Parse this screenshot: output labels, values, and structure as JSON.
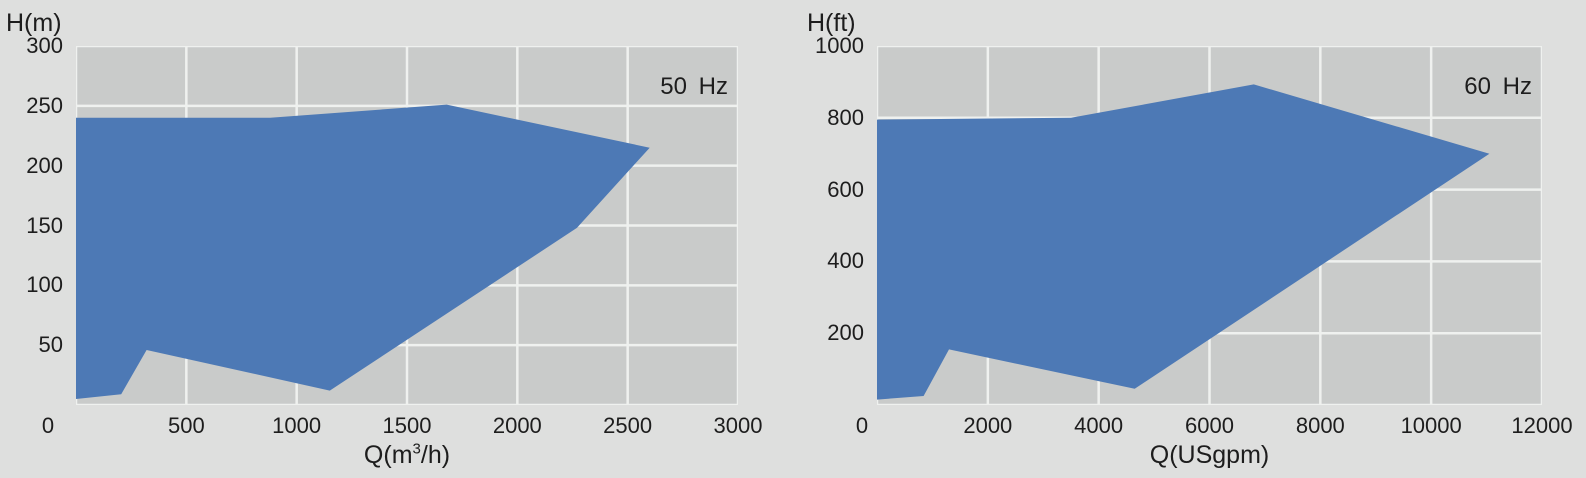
{
  "page": {
    "background": "#dedfde",
    "plot_background": "#c9cbca",
    "grid_color": "#eff1ef",
    "envelope_color": "#4d79b5",
    "text_color": "#1d1d1d"
  },
  "chart_data": [
    {
      "type": "area",
      "frequency_label": "50 Hz",
      "y_axis_title": "H(m)",
      "x_axis_title": {
        "pre": "Q(m",
        "sup": "3",
        "post": "/h)"
      },
      "x_range": [
        0,
        3000
      ],
      "y_range": [
        0,
        300
      ],
      "x_grid_step": 500,
      "y_grid_step": 50,
      "x_tick_labels": [
        500,
        1000,
        1500,
        2000,
        2500,
        3000
      ],
      "y_tick_labels": [
        300,
        250,
        200,
        150,
        100,
        50
      ],
      "origin_label": "0",
      "envelope_points": [
        [
          0,
          240
        ],
        [
          880,
          240
        ],
        [
          1680,
          251
        ],
        [
          2600,
          215
        ],
        [
          2270,
          148
        ],
        [
          1150,
          12
        ],
        [
          320,
          46
        ],
        [
          205,
          9
        ],
        [
          0,
          5
        ]
      ]
    },
    {
      "type": "area",
      "frequency_label": "60 Hz",
      "y_axis_title": "H(ft)",
      "x_axis_title": {
        "pre": "Q(USgpm)",
        "sup": "",
        "post": ""
      },
      "x_range": [
        0,
        12000
      ],
      "y_range": [
        0,
        1000
      ],
      "x_grid_step": 2000,
      "y_grid_step": 200,
      "x_tick_labels": [
        2000,
        4000,
        6000,
        8000,
        10000,
        12000
      ],
      "y_tick_labels": [
        1000,
        800,
        600,
        400,
        200
      ],
      "origin_label": "0",
      "envelope_points": [
        [
          0,
          795
        ],
        [
          3500,
          800
        ],
        [
          6800,
          893
        ],
        [
          11050,
          700
        ],
        [
          4650,
          45
        ],
        [
          1300,
          155
        ],
        [
          840,
          25
        ],
        [
          0,
          15
        ]
      ]
    }
  ]
}
